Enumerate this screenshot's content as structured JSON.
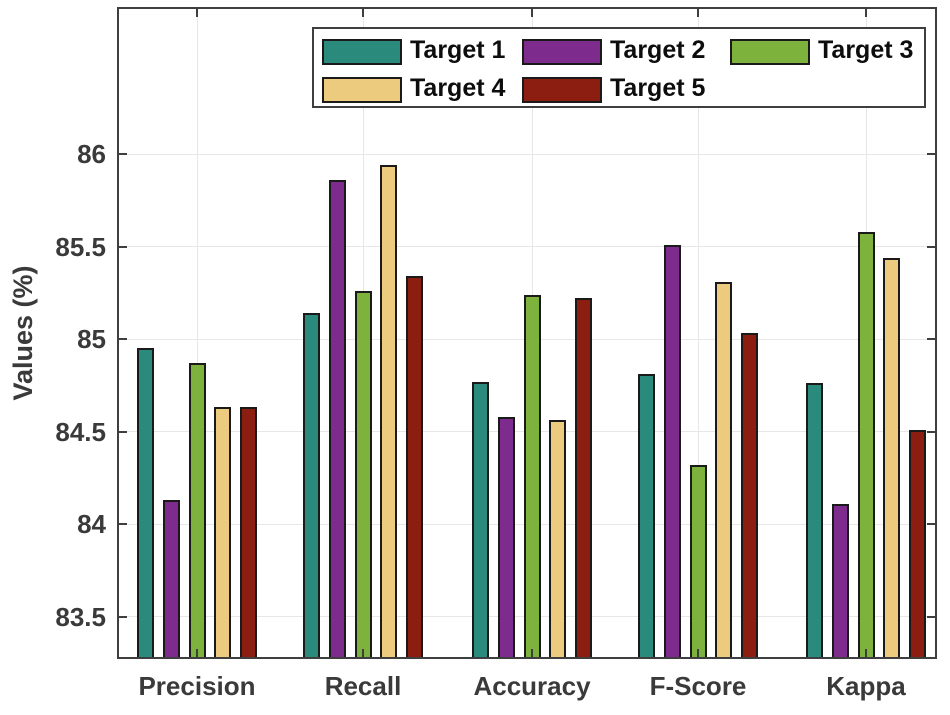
{
  "chart_data": {
    "type": "bar",
    "title": "",
    "xlabel": "",
    "ylabel": "Values (%)",
    "categories": [
      "Precision",
      "Recall",
      "Accuracy",
      "F-Score",
      "Kappa"
    ],
    "series": [
      {
        "name": "Target 1",
        "color": "#2a8b7d",
        "values": [
          84.95,
          85.14,
          84.77,
          84.81,
          84.76
        ]
      },
      {
        "name": "Target 2",
        "color": "#7d2b8d",
        "values": [
          84.13,
          85.86,
          84.58,
          85.51,
          84.11
        ]
      },
      {
        "name": "Target 3",
        "color": "#7db33c",
        "values": [
          84.87,
          85.26,
          85.24,
          84.32,
          85.58
        ]
      },
      {
        "name": "Target 4",
        "color": "#eccb7e",
        "values": [
          84.63,
          85.94,
          84.56,
          85.31,
          85.44
        ]
      },
      {
        "name": "Target 5",
        "color": "#8c1d11",
        "values": [
          84.63,
          85.34,
          85.22,
          85.03,
          84.51
        ]
      }
    ],
    "yticks": [
      83.5,
      84,
      84.5,
      85,
      85.5,
      86
    ],
    "ylim": [
      83.27,
      86.79
    ],
    "grid": true,
    "legend_position": "top-center",
    "legend_columns": 3,
    "bar_edge_color": "#1a1a1a",
    "axis_color": "#3f3f3f",
    "grid_color": "#e7e7e7",
    "tick_label_color": "#3a3a3a"
  }
}
